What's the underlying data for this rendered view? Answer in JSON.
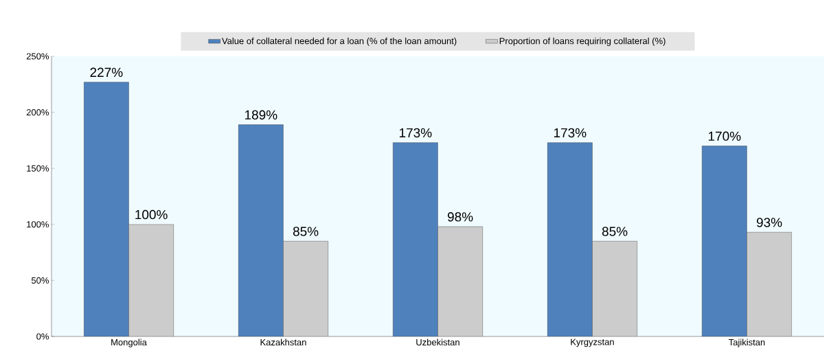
{
  "chart_data": {
    "type": "bar",
    "categories": [
      "Mongolia",
      "Kazakhstan",
      "Uzbekistan",
      "Kyrgyzstan",
      "Tajikistan"
    ],
    "series": [
      {
        "name": "Value of collateral needed for a loan (% of the loan amount)",
        "color": "#4f81bd",
        "values": [
          227,
          189,
          173,
          173,
          170
        ],
        "value_labels": [
          "227%",
          "189%",
          "173%",
          "173%",
          "170%"
        ]
      },
      {
        "name": "Proportion of loans requiring collateral (%)",
        "color": "#cccccc",
        "values": [
          100,
          85,
          98,
          85,
          93
        ],
        "value_labels": [
          "100%",
          "85%",
          "98%",
          "85%",
          "93%"
        ]
      }
    ],
    "ylim": [
      0,
      250
    ],
    "yticks": [
      {
        "value": 0,
        "label": "0%"
      },
      {
        "value": 50,
        "label": "50%"
      },
      {
        "value": 100,
        "label": "100%"
      },
      {
        "value": 150,
        "label": "150%"
      },
      {
        "value": 200,
        "label": "200%"
      },
      {
        "value": 250,
        "label": "250%"
      }
    ],
    "grid": false,
    "legend": "top"
  }
}
